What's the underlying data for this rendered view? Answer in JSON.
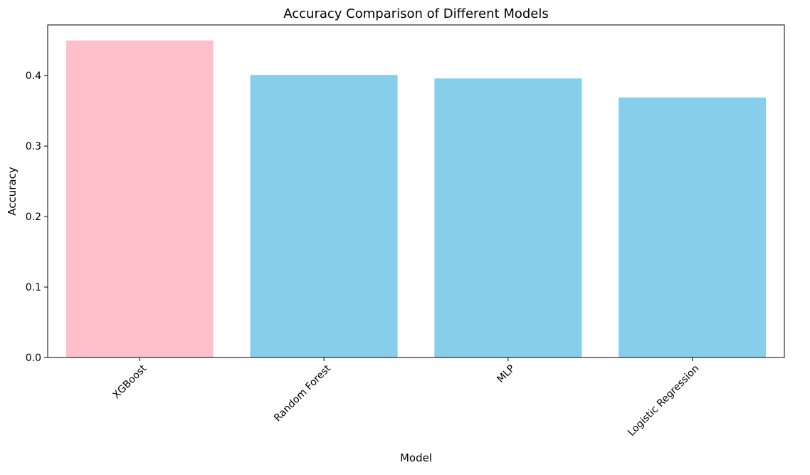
{
  "chart_data": {
    "type": "bar",
    "title": "Accuracy Comparison of Different Models",
    "xlabel": "Model",
    "ylabel": "Accuracy",
    "categories": [
      "XGBoost",
      "Random Forest",
      "MLP",
      "Logistic Regression"
    ],
    "values": [
      0.45,
      0.401,
      0.396,
      0.369
    ],
    "bar_colors": [
      "#ffc0cb",
      "#87ceeb",
      "#87ceeb",
      "#87ceeb"
    ],
    "ylim": [
      0,
      0.472
    ],
    "yticks": [
      0.0,
      0.1,
      0.2,
      0.3,
      0.4
    ],
    "ytick_labels": [
      "0.0",
      "0.1",
      "0.2",
      "0.3",
      "0.4"
    ],
    "grid": false,
    "legend": "none"
  }
}
